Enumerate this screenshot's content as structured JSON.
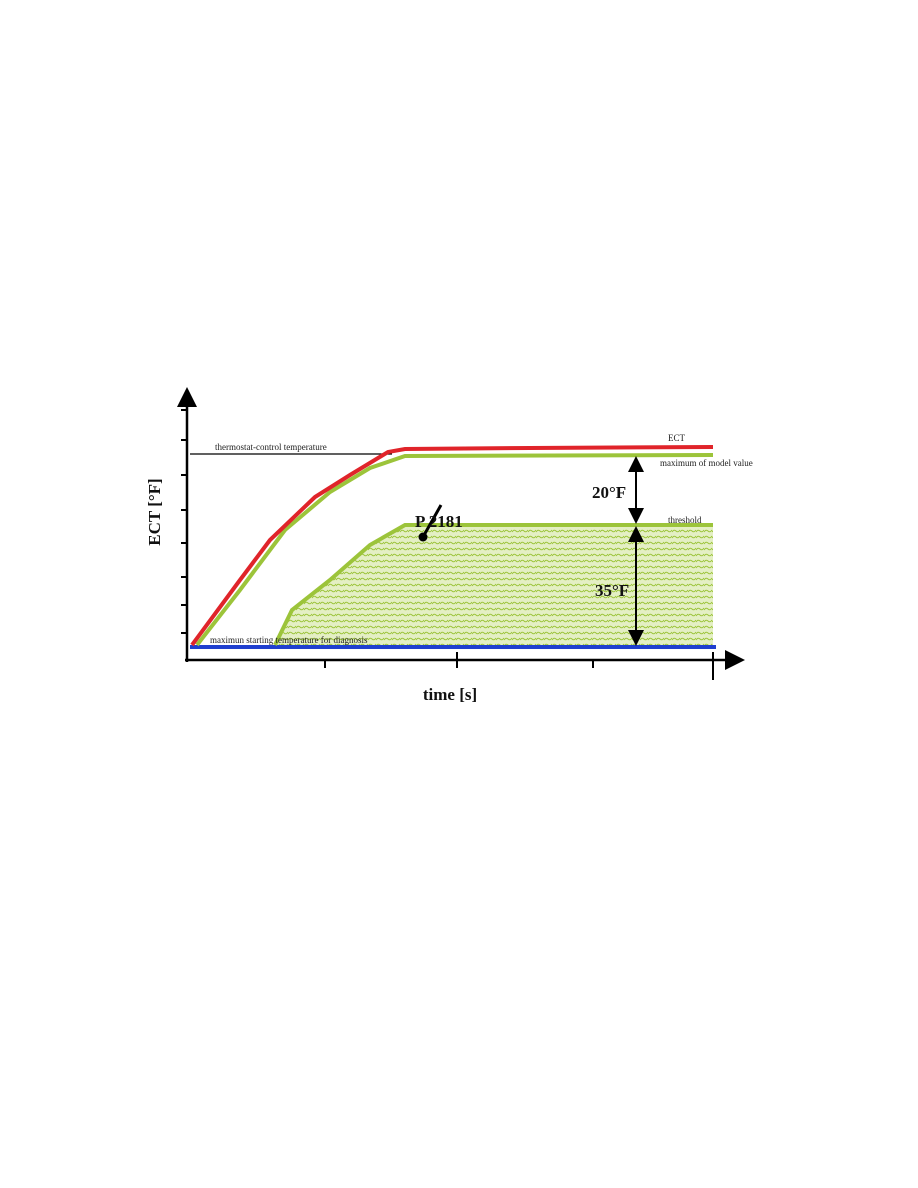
{
  "axes": {
    "y_label": "ECT [°F]",
    "x_label": "time [s]"
  },
  "labels": {
    "thermostat": "thermostat-control temperature",
    "ect": "ECT",
    "model_max": "maximum of model value",
    "threshold": "threshold",
    "start_temp": "maximun starting temperature for diagnosis",
    "code": "P 2181",
    "gap_upper": "20°F",
    "gap_lower": "35°F"
  }
}
